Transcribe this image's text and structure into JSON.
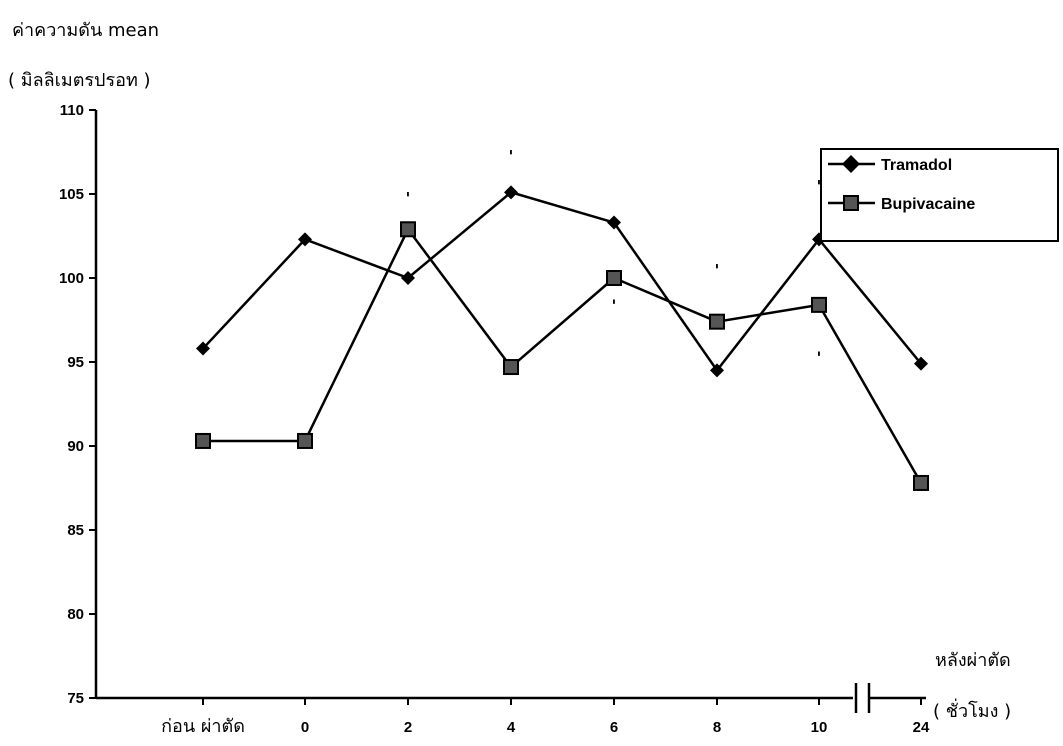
{
  "chart_data": {
    "type": "line",
    "ylabel_line1": "ค่าความดัน mean",
    "ylabel_line2": "( มิลลิเมตรปรอท )",
    "xlabel_line1": "หลังผ่าตัด",
    "xlabel_line2": "( ชั่วโมง )",
    "categories": [
      "ก่อน ผ่าตัด",
      "0",
      "2",
      "4",
      "6",
      "8",
      "10",
      "24"
    ],
    "ylim": [
      75,
      110
    ],
    "yticks": [
      "75",
      "80",
      "85",
      "90",
      "95",
      "100",
      "105",
      "110"
    ],
    "axis_break": "between 10 and 24",
    "legend_position": "top-right",
    "series": [
      {
        "name": "Tramadol",
        "marker": "diamond",
        "values": [
          95.8,
          102.3,
          100.0,
          105.1,
          103.3,
          94.5,
          102.3,
          94.9
        ]
      },
      {
        "name": "Bupivacaine",
        "marker": "square",
        "values": [
          90.3,
          90.3,
          102.9,
          94.7,
          100.0,
          97.4,
          98.4,
          87.8
        ]
      }
    ],
    "annotations": [
      {
        "text": "'",
        "category": "2",
        "y": 104.8
      },
      {
        "text": "'",
        "category": "4",
        "y": 107.3
      },
      {
        "text": "'",
        "category": "6",
        "y": 98.4
      },
      {
        "text": "'",
        "category": "8",
        "y": 100.5
      },
      {
        "text": "'",
        "category": "10",
        "y": 105.5
      },
      {
        "text": "'",
        "category": "10",
        "y": 95.3
      }
    ]
  }
}
